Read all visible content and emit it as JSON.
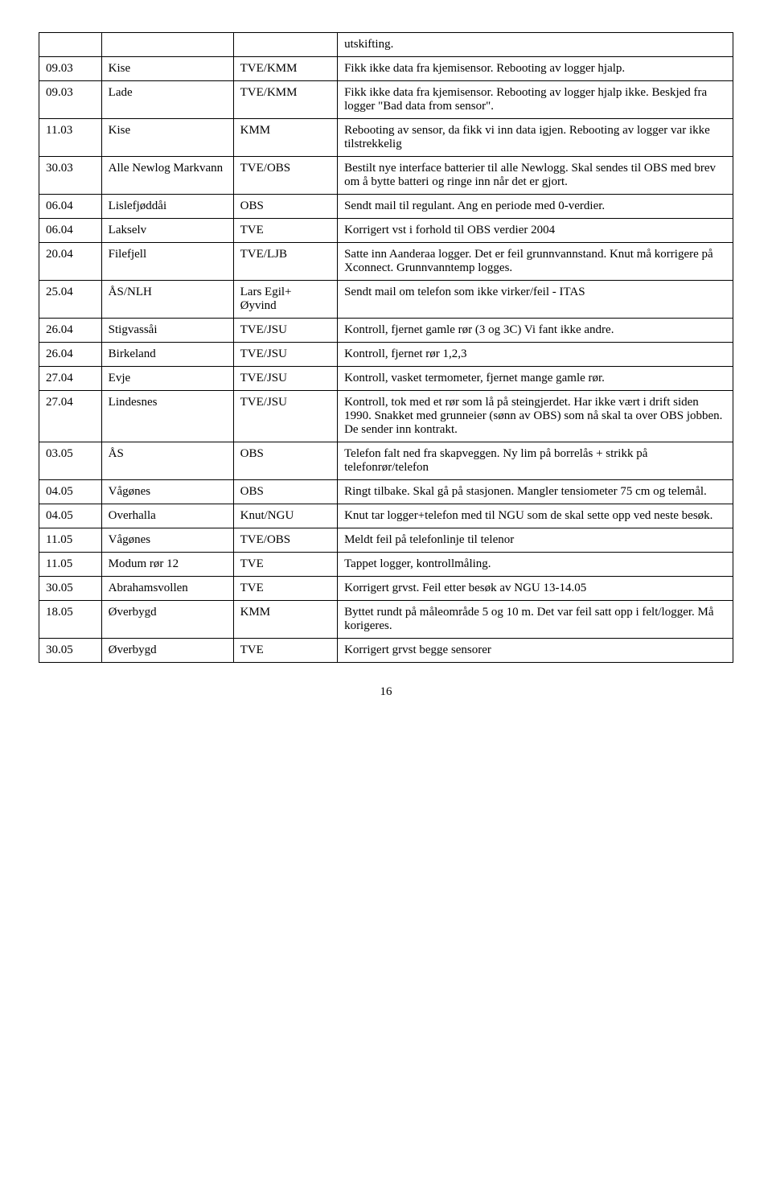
{
  "table": {
    "rows": [
      {
        "c1": "",
        "c2": "",
        "c3": "",
        "c4": "utskifting."
      },
      {
        "c1": "09.03",
        "c2": "Kise",
        "c3": "TVE/KMM",
        "c4": "Fikk ikke data fra kjemisensor. Rebooting av logger hjalp."
      },
      {
        "c1": "09.03",
        "c2": "Lade",
        "c3": "TVE/KMM",
        "c4": "Fikk ikke data fra kjemisensor. Rebooting av logger hjalp ikke. Beskjed fra logger \"Bad data from sensor\"."
      },
      {
        "c1": "11.03",
        "c2": "Kise",
        "c3": "KMM",
        "c4": "Rebooting av sensor, da fikk vi inn data igjen. Rebooting av logger var ikke tilstrekkelig"
      },
      {
        "c1": "30.03",
        "c2": "Alle Newlog Markvann",
        "c3": "TVE/OBS",
        "c4": "Bestilt nye interface batterier til alle Newlogg. Skal sendes til OBS med brev om å bytte batteri og ringe inn når det er gjort."
      },
      {
        "c1": "06.04",
        "c2": "Lislefjøddåi",
        "c3": "OBS",
        "c4": "Sendt mail til regulant. Ang en periode med 0-verdier."
      },
      {
        "c1": "06.04",
        "c2": "Lakselv",
        "c3": "TVE",
        "c4": "Korrigert vst i forhold til OBS verdier 2004"
      },
      {
        "c1": "20.04",
        "c2": "Filefjell",
        "c3": "TVE/LJB",
        "c4": "Satte inn Aanderaa logger. Det er feil grunnvannstand. Knut må korrigere på Xconnect. Grunnvanntemp logges."
      },
      {
        "c1": "25.04",
        "c2": "ÅS/NLH",
        "c3": "Lars Egil+ Øyvind",
        "c4": "Sendt mail om telefon som ikke virker/feil - ITAS"
      },
      {
        "c1": "26.04",
        "c2": "Stigvassåi",
        "c3": "TVE/JSU",
        "c4": "Kontroll, fjernet gamle rør (3 og 3C) Vi fant ikke andre."
      },
      {
        "c1": "26.04",
        "c2": "Birkeland",
        "c3": "TVE/JSU",
        "c4": "Kontroll, fjernet rør 1,2,3"
      },
      {
        "c1": "27.04",
        "c2": "Evje",
        "c3": "TVE/JSU",
        "c4": "Kontroll, vasket termometer, fjernet mange gamle rør."
      },
      {
        "c1": "27.04",
        "c2": "Lindesnes",
        "c3": "TVE/JSU",
        "c4": "Kontroll, tok med et rør som lå på steingjerdet. Har ikke vært i drift siden 1990. Snakket med grunneier (sønn av OBS) som nå skal ta over OBS jobben. De sender inn kontrakt."
      },
      {
        "c1": "03.05",
        "c2": "ÅS",
        "c3": "OBS",
        "c4": "Telefon falt ned fra skapveggen. Ny lim på borrelås + strikk på telefonrør/telefon"
      },
      {
        "c1": "04.05",
        "c2": "Vågønes",
        "c3": "OBS",
        "c4": "Ringt tilbake. Skal gå på stasjonen. Mangler tensiometer 75 cm og telemål."
      },
      {
        "c1": "04.05",
        "c2": "Overhalla",
        "c3": "Knut/NGU",
        "c4": "Knut tar logger+telefon med til NGU som de skal sette opp ved neste besøk."
      },
      {
        "c1": "11.05",
        "c2": "Vågønes",
        "c3": "TVE/OBS",
        "c4": "Meldt feil på telefonlinje til telenor"
      },
      {
        "c1": "11.05",
        "c2": "Modum rør 12",
        "c3": "TVE",
        "c4": "Tappet logger, kontrollmåling."
      },
      {
        "c1": "30.05",
        "c2": "Abrahamsvollen",
        "c3": "TVE",
        "c4": "Korrigert grvst. Feil etter besøk av NGU 13-14.05"
      },
      {
        "c1": "18.05",
        "c2": "Øverbygd",
        "c3": "KMM",
        "c4": "Byttet rundt på måleområde 5 og 10 m. Det var feil satt opp i felt/logger. Må korigeres."
      },
      {
        "c1": "30.05",
        "c2": "Øverbygd",
        "c3": "TVE",
        "c4": "Korrigert grvst begge sensorer"
      }
    ]
  },
  "page_number": "16"
}
